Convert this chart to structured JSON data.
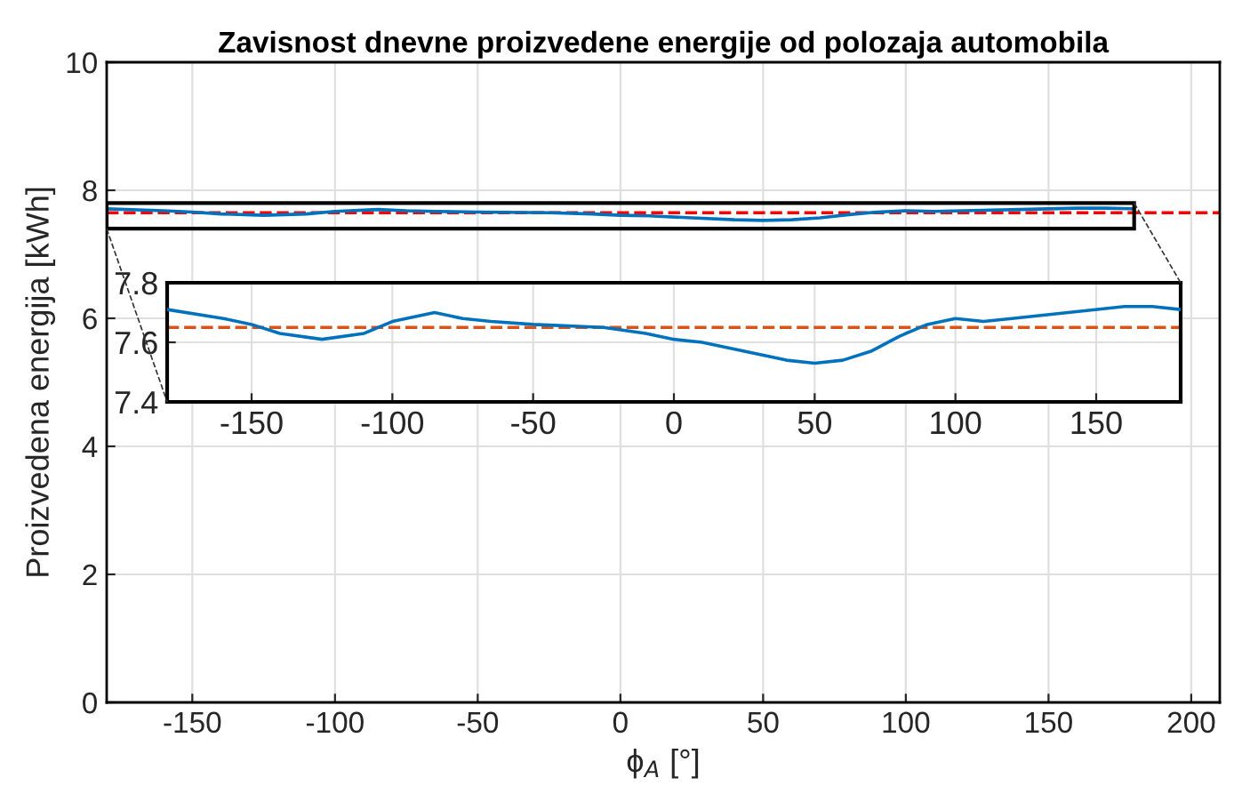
{
  "chart_data": [
    {
      "type": "line",
      "title": "Zavisnost dnevne proizvedene energije od polozaja automobila",
      "xlabel": "ϕ$_{A}$ [°]",
      "ylabel": "Proizvedena energija [kWh]",
      "x": [
        -180,
        -160,
        -150,
        -140,
        -125,
        -110,
        -100,
        -85,
        -75,
        -65,
        -50,
        -25,
        -10,
        0,
        10,
        25,
        40,
        50,
        60,
        70,
        80,
        90,
        100,
        110,
        120,
        140,
        160,
        170,
        180
      ],
      "series": [
        {
          "color": "#0072bd",
          "values": [
            7.71,
            7.68,
            7.66,
            7.63,
            7.61,
            7.63,
            7.67,
            7.7,
            7.68,
            7.67,
            7.66,
            7.65,
            7.63,
            7.61,
            7.6,
            7.57,
            7.54,
            7.53,
            7.54,
            7.57,
            7.62,
            7.66,
            7.68,
            7.67,
            7.68,
            7.7,
            7.72,
            7.72,
            7.71
          ]
        }
      ],
      "ref_lines": [
        {
          "axis": "y",
          "value": 7.65,
          "color": "#ff0000",
          "line_style": "dashed"
        }
      ],
      "xlim": [
        -180,
        210
      ],
      "xticks": [
        -150,
        -100,
        -50,
        0,
        50,
        100,
        150,
        200
      ],
      "ylim": [
        0,
        10
      ],
      "yticks": [
        0,
        2,
        4,
        6,
        8,
        10
      ],
      "grid": true,
      "marker": "none",
      "line_style": "solid"
    },
    {
      "type": "line",
      "x": [
        -180,
        -160,
        -150,
        -140,
        -125,
        -110,
        -100,
        -85,
        -75,
        -65,
        -50,
        -25,
        -10,
        0,
        10,
        25,
        40,
        50,
        60,
        70,
        80,
        90,
        100,
        110,
        120,
        140,
        160,
        170,
        180
      ],
      "series": [
        {
          "color": "#0072bd",
          "values": [
            7.71,
            7.68,
            7.66,
            7.63,
            7.61,
            7.63,
            7.67,
            7.7,
            7.68,
            7.67,
            7.66,
            7.65,
            7.63,
            7.61,
            7.6,
            7.57,
            7.54,
            7.53,
            7.54,
            7.57,
            7.62,
            7.66,
            7.68,
            7.67,
            7.68,
            7.7,
            7.72,
            7.72,
            7.71
          ]
        }
      ],
      "ref_lines": [
        {
          "axis": "y",
          "value": 7.65,
          "color": "#d95319",
          "line_style": "dashed"
        }
      ],
      "xlim": [
        -180,
        180
      ],
      "xticks": [
        -150,
        -100,
        -50,
        0,
        50,
        100,
        150
      ],
      "ylim": [
        7.4,
        7.8
      ],
      "yticks": [
        7.4,
        7.6,
        7.8
      ],
      "grid": true,
      "marker": "none",
      "line_style": "solid"
    }
  ]
}
